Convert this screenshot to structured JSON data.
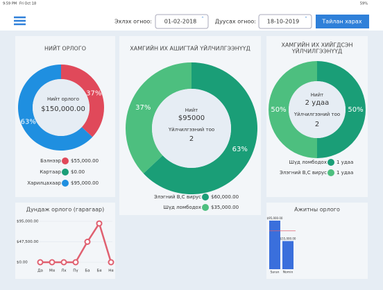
{
  "status_bar": {
    "time": "9:59 PM",
    "date": "Fri Oct 18",
    "battery": "59%"
  },
  "toolbar": {
    "start_label": "Эхлэх огноо:",
    "start_date": "01-02-2018",
    "end_label": "Дуусах огноо:",
    "end_date": "18-10-2019",
    "button": "Тайлан харах"
  },
  "total_income": {
    "title": "НИЙТ ОРЛОГО",
    "center_label": "Нийт орлого",
    "center_value": "$150,000.00",
    "values": [
      37,
      63
    ],
    "value_labels": [
      "37%",
      "63%"
    ],
    "colors": [
      "#e0495a",
      "#1f8fe0"
    ],
    "legend": [
      {
        "label": "Бэлнээр",
        "amount": "$55,000.00",
        "color": "#e0495a"
      },
      {
        "label": "Картаар",
        "amount": "$0.00",
        "color": "#1a9e77"
      },
      {
        "label": "Харилцахаар",
        "amount": "$95,000.00",
        "color": "#1f8fe0"
      }
    ]
  },
  "top_profit": {
    "title": "ХАМГИЙН ИХ АШИГТАЙ ҮЙЛЧИЛГЭЭНҮҮД",
    "center_label": "Нийт",
    "center_value": "$95000",
    "count_label": "Үйлчилгээний тоо",
    "count": "2",
    "values": [
      63,
      37
    ],
    "value_labels": [
      "63%",
      "37%"
    ],
    "colors": [
      "#1a9e77",
      "#4dbf7f"
    ],
    "legend": [
      {
        "label": "Элэгний В,С вирус",
        "amount": "$60,000.00",
        "color": "#1a9e77"
      },
      {
        "label": "Шүд ломбодох",
        "amount": "$35,000.00",
        "color": "#4dbf7f"
      }
    ]
  },
  "top_count": {
    "title_lines": [
      "ХАМГИЙН ИХ ХИЙГДСЭН",
      "ҮЙЛЧИЛГЭЭНҮҮД"
    ],
    "center_label": "Нийт",
    "center_value": "2 удаа",
    "count_label": "Үйлчилгээний тоо",
    "count": "2",
    "values": [
      50,
      50
    ],
    "value_labels": [
      "50%",
      "50%"
    ],
    "colors": [
      "#1a9e77",
      "#4dbf7f"
    ],
    "legend": [
      {
        "label": "Шүд ломбодох",
        "amount": "1 удаа",
        "color": "#1a9e77"
      },
      {
        "label": "Элэгний В,С вирус",
        "amount": "1 удаа",
        "color": "#4dbf7f"
      }
    ]
  },
  "weekly_income": {
    "title": "Дундаж орлого (гарагаар)",
    "categories": [
      "Да",
      "Мя",
      "Лх",
      "Пү",
      "Ба",
      "Бя",
      "Ня"
    ],
    "values": [
      0,
      0,
      0,
      0,
      47500,
      90000,
      0
    ],
    "ylim": [
      0,
      95000
    ],
    "yticks": [
      {
        "value": 0,
        "label": "$0.00"
      },
      {
        "value": 47500,
        "label": "$47,500.00"
      },
      {
        "value": 95000,
        "label": "$95,000.00"
      }
    ],
    "color": "#e06070"
  },
  "staff_income": {
    "title": "Ажитны орлого",
    "categories": [
      "Saran",
      "Nomin"
    ],
    "values": [
      95000,
      55000
    ],
    "value_labels": [
      "$95,000.00",
      "$55,000.00"
    ],
    "ylim": [
      0,
      95000
    ],
    "average": 75000,
    "color": "#3a6fdc",
    "average_color": "#e06070"
  }
}
